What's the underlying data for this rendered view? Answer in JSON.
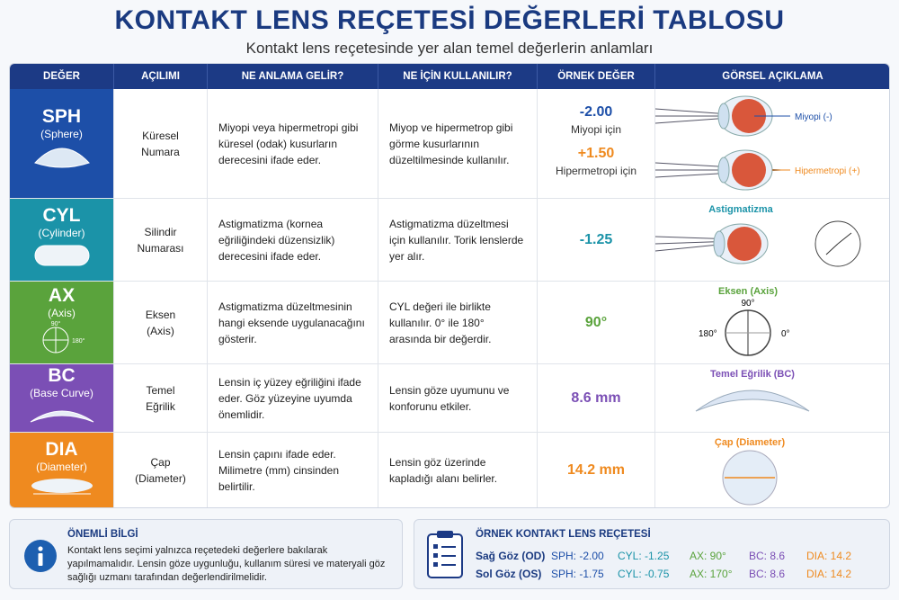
{
  "header": {
    "title": "KONTAKT LENS REÇETESİ DEĞERLERİ TABLOSU",
    "subtitle": "Kontakt lens reçetesinde yer alan temel değerlerin anlamları"
  },
  "table": {
    "headers": [
      "DEĞER",
      "AÇILIMI",
      "NE ANLAMA GELİR?",
      "NE İÇİN KULLANILIR?",
      "ÖRNEK DEĞER",
      "GÖRSEL AÇIKLAMA"
    ],
    "rows": [
      {
        "code": "SPH",
        "name": "(Sphere)",
        "description": "Küresel Numara",
        "meaning": "Miyopi veya hipermetropi gibi küresel (odak) kusurların derecesini ifade eder.",
        "usage": "Miyop ve hipermetrop gibi görme kusurlarının düzeltilmesinde kullanılır.",
        "example": [
          "-2.00",
          "Miyopi için",
          "+1.50",
          "Hipermetropi için"
        ],
        "visual": [
          "Miyopi (-)",
          "Hipermetropi (+)"
        ]
      },
      {
        "code": "CYL",
        "name": "(Cylinder)",
        "description": "Silindir Numarası",
        "meaning": "Astigmatizma (kornea eğriliğindeki düzensizlik) derecesini ifade eder.",
        "usage": "Astigmatizma düzeltmesi için kullanılır. Torik lenslerde yer alır.",
        "example": [
          "-1.25"
        ],
        "visual": [
          "Astigmatizma"
        ]
      },
      {
        "code": "AX",
        "name": "(Axis)",
        "icon": [
          "90°",
          "180°"
        ],
        "description": "Eksen (Axis)",
        "meaning": "Astigmatizma düzeltmesinin hangi eksende uygulanacağını gösterir.",
        "usage": "CYL değeri ile birlikte kullanılır. 0° ile 180° arasında bir değerdir.",
        "example": [
          "90°"
        ],
        "visual": [
          "Eksen (Axis)",
          "90°",
          "180°",
          "0°"
        ]
      },
      {
        "code": "BC",
        "name": "(Base Curve)",
        "description": "Temel Eğrilik",
        "meaning": "Lensin iç yüzey eğriliğini ifade eder. Göz yüzeyine uyumda önemlidir.",
        "usage": "Lensin göze uyumunu ve konforunu etkiler.",
        "example": [
          "8.6 mm"
        ],
        "visual": [
          "Temel Eğrilik (BC)"
        ]
      },
      {
        "code": "DIA",
        "name": "(Diameter)",
        "description": "Çap (Diameter)",
        "meaning": "Lensin çapını ifade eder. Milimetre (mm) cinsinden belirtilir.",
        "usage": "Lensin göz üzerinde kapladığı alanı belirler.",
        "example": [
          "14.2 mm"
        ],
        "visual": [
          "Çap (Diameter)"
        ]
      }
    ]
  },
  "info": {
    "title": "ÖNEMLİ BİLGİ",
    "text": "Kontakt lens seçimi yalnızca reçetedeki değerlere bakılarak yapılmamalıdır. Lensin göze uygunluğu, kullanım süresi ve materyali göz sağlığı uzmanı tarafından değerlendirilmelidir."
  },
  "prescription": {
    "title": "ÖRNEK KONTAKT LENS REÇETESİ",
    "rows": [
      [
        "Sağ Göz (OD)",
        "SPH: -2.00",
        "CYL: -1.25",
        "AX: 90°",
        "BC: 8.6",
        "DIA: 14.2"
      ],
      [
        "Sol Göz (OS)",
        "SPH: -1.75",
        "CYL: -0.75",
        "AX: 170°",
        "BC: 8.6",
        "DIA: 14.2"
      ]
    ]
  }
}
